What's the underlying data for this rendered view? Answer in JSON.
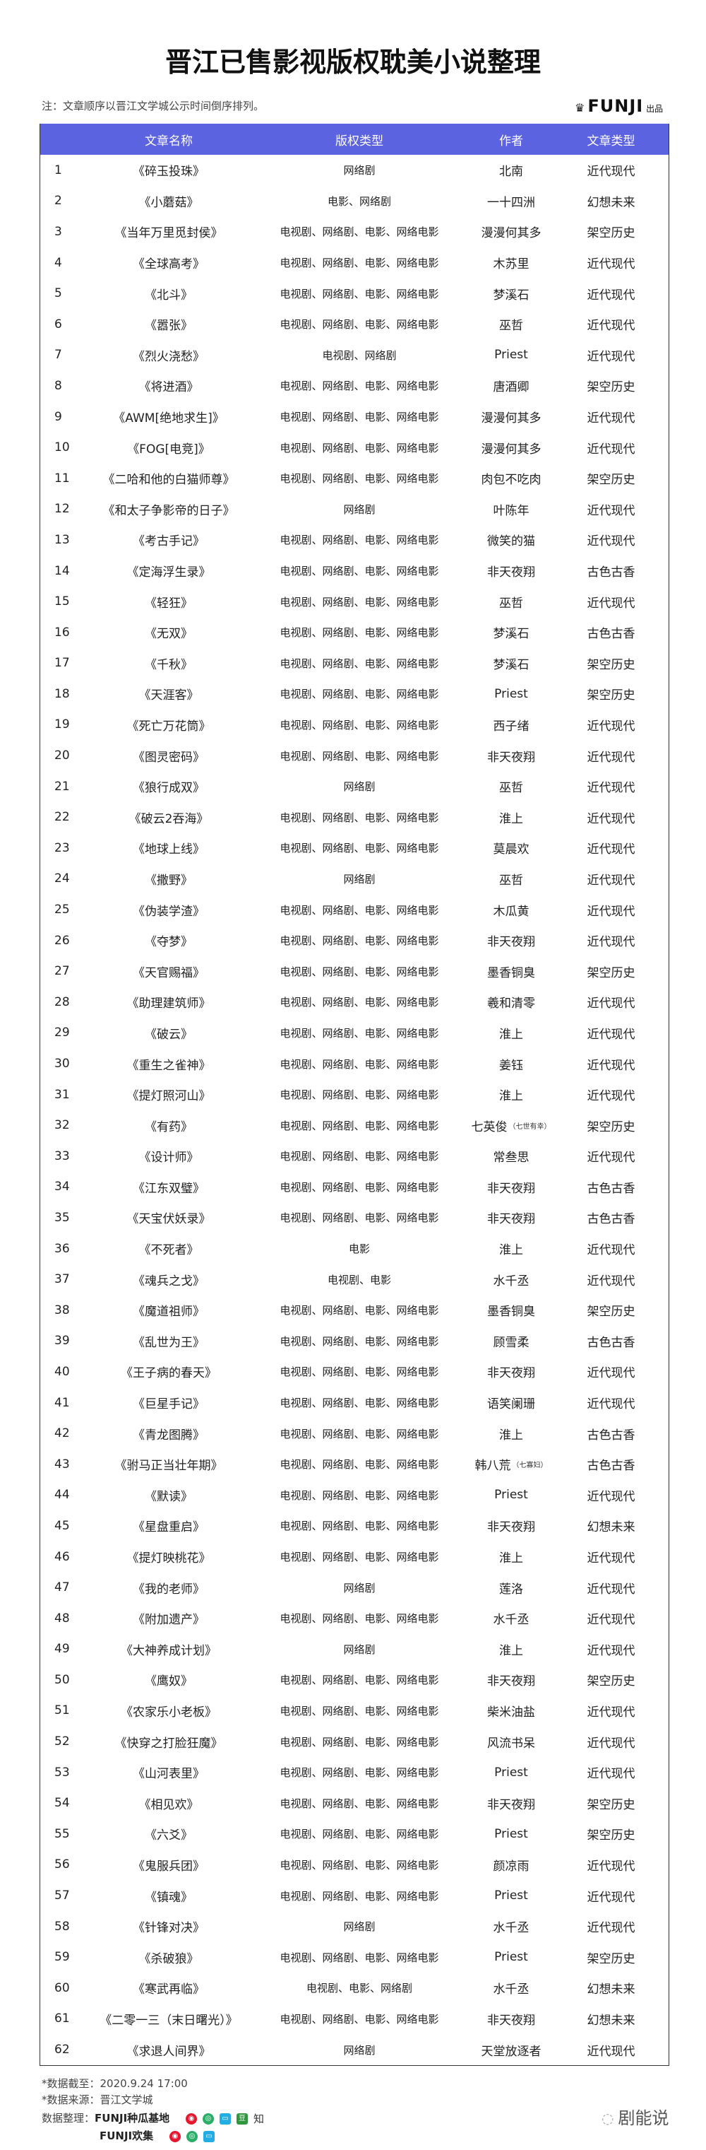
{
  "title": "晋江已售影视版权耽美小说整理",
  "note": "注：文章顺序以晋江文学城公示时间倒序排列。",
  "brand": {
    "name": "FUNJI",
    "suffix": "出品",
    "icon": "crown-icon"
  },
  "colors": {
    "header_bg": "#5c63e1",
    "header_text": "#ffffff"
  },
  "table": {
    "headers": [
      "",
      "文章名称",
      "版权类型",
      "作者",
      "文章类型"
    ],
    "rows": [
      [
        "1",
        "《碎玉投珠》",
        "网络剧",
        "北南",
        "近代现代"
      ],
      [
        "2",
        "《小蘑菇》",
        "电影、网络剧",
        "一十四洲",
        "幻想未来"
      ],
      [
        "3",
        "《当年万里觅封侯》",
        "电视剧、网络剧、电影、网络电影",
        "漫漫何其多",
        "架空历史"
      ],
      [
        "4",
        "《全球高考》",
        "电视剧、网络剧、电影、网络电影",
        "木苏里",
        "近代现代"
      ],
      [
        "5",
        "《北斗》",
        "电视剧、网络剧、电影、网络电影",
        "梦溪石",
        "近代现代"
      ],
      [
        "6",
        "《嚣张》",
        "电视剧、网络剧、电影、网络电影",
        "巫哲",
        "近代现代"
      ],
      [
        "7",
        "《烈火浇愁》",
        "电视剧、网络剧",
        "Priest",
        "近代现代"
      ],
      [
        "8",
        "《将进酒》",
        "电视剧、网络剧、电影、网络电影",
        "唐酒卿",
        "架空历史"
      ],
      [
        "9",
        "《AWM[绝地求生]》",
        "电视剧、网络剧、电影、网络电影",
        "漫漫何其多",
        "近代现代"
      ],
      [
        "10",
        "《FOG[电竞]》",
        "电视剧、网络剧、电影、网络电影",
        "漫漫何其多",
        "近代现代"
      ],
      [
        "11",
        "《二哈和他的白猫师尊》",
        "电视剧、网络剧、电影、网络电影",
        "肉包不吃肉",
        "架空历史"
      ],
      [
        "12",
        "《和太子争影帝的日子》",
        "网络剧",
        "叶陈年",
        "近代现代"
      ],
      [
        "13",
        "《考古手记》",
        "电视剧、网络剧、电影、网络电影",
        "微笑的猫",
        "近代现代"
      ],
      [
        "14",
        "《定海浮生录》",
        "电视剧、网络剧、电影、网络电影",
        "非天夜翔",
        "古色古香"
      ],
      [
        "15",
        "《轻狂》",
        "电视剧、网络剧、电影、网络电影",
        "巫哲",
        "近代现代"
      ],
      [
        "16",
        "《无双》",
        "电视剧、网络剧、电影、网络电影",
        "梦溪石",
        "古色古香"
      ],
      [
        "17",
        "《千秋》",
        "电视剧、网络剧、电影、网络电影",
        "梦溪石",
        "架空历史"
      ],
      [
        "18",
        "《天涯客》",
        "电视剧、网络剧、电影、网络电影",
        "Priest",
        "架空历史"
      ],
      [
        "19",
        "《死亡万花筒》",
        "电视剧、网络剧、电影、网络电影",
        "西子绪",
        "近代现代"
      ],
      [
        "20",
        "《图灵密码》",
        "电视剧、网络剧、电影、网络电影",
        "非天夜翔",
        "近代现代"
      ],
      [
        "21",
        "《狼行成双》",
        "网络剧",
        "巫哲",
        "近代现代"
      ],
      [
        "22",
        "《破云2吞海》",
        "电视剧、网络剧、电影、网络电影",
        "淮上",
        "近代现代"
      ],
      [
        "23",
        "《地球上线》",
        "电视剧、网络剧、电影、网络电影",
        "莫晨欢",
        "近代现代"
      ],
      [
        "24",
        "《撒野》",
        "网络剧",
        "巫哲",
        "近代现代"
      ],
      [
        "25",
        "《伪装学渣》",
        "电视剧、网络剧、电影、网络电影",
        "木瓜黄",
        "近代现代"
      ],
      [
        "26",
        "《夺梦》",
        "电视剧、网络剧、电影、网络电影",
        "非天夜翔",
        "近代现代"
      ],
      [
        "27",
        "《天官赐福》",
        "电视剧、网络剧、电影、网络电影",
        "墨香铜臭",
        "架空历史"
      ],
      [
        "28",
        "《助理建筑师》",
        "电视剧、网络剧、电影、网络电影",
        "羲和清零",
        "近代现代"
      ],
      [
        "29",
        "《破云》",
        "电视剧、网络剧、电影、网络电影",
        "淮上",
        "近代现代"
      ],
      [
        "30",
        "《重生之雀神》",
        "电视剧、网络剧、电影、网络电影",
        "姜钰",
        "近代现代"
      ],
      [
        "31",
        "《提灯照河山》",
        "电视剧、网络剧、电影、网络电影",
        "淮上",
        "近代现代"
      ],
      [
        "32",
        "《有药》",
        "电视剧、网络剧、电影、网络电影",
        "七英俊",
        "架空历史",
        "（七世有幸）"
      ],
      [
        "33",
        "《设计师》",
        "电视剧、网络剧、电影、网络电影",
        "常叁思",
        "近代现代"
      ],
      [
        "34",
        "《江东双璧》",
        "电视剧、网络剧、电影、网络电影",
        "非天夜翔",
        "古色古香"
      ],
      [
        "35",
        "《天宝伏妖录》",
        "电视剧、网络剧、电影、网络电影",
        "非天夜翔",
        "古色古香"
      ],
      [
        "36",
        "《不死者》",
        "电影",
        "淮上",
        "近代现代"
      ],
      [
        "37",
        "《魂兵之戈》",
        "电视剧、电影",
        "水千丞",
        "近代现代"
      ],
      [
        "38",
        "《魔道祖师》",
        "电视剧、网络剧、电影、网络电影",
        "墨香铜臭",
        "架空历史"
      ],
      [
        "39",
        "《乱世为王》",
        "电视剧、网络剧、电影、网络电影",
        "顾雪柔",
        "古色古香"
      ],
      [
        "40",
        "《王子病的春天》",
        "电视剧、网络剧、电影、网络电影",
        "非天夜翔",
        "近代现代"
      ],
      [
        "41",
        "《巨星手记》",
        "电视剧、网络剧、电影、网络电影",
        "语笑阑珊",
        "近代现代"
      ],
      [
        "42",
        "《青龙图腾》",
        "电视剧、网络剧、电影、网络电影",
        "淮上",
        "古色古香"
      ],
      [
        "43",
        "《驸马正当壮年期》",
        "电视剧、网络剧、电影、网络电影",
        "韩八荒",
        "古色古香",
        "（七寡妇）"
      ],
      [
        "44",
        "《默读》",
        "电视剧、网络剧、电影、网络电影",
        "Priest",
        "近代现代"
      ],
      [
        "45",
        "《星盘重启》",
        "电视剧、网络剧、电影、网络电影",
        "非天夜翔",
        "幻想未来"
      ],
      [
        "46",
        "《提灯映桃花》",
        "电视剧、网络剧、电影、网络电影",
        "淮上",
        "近代现代"
      ],
      [
        "47",
        "《我的老师》",
        "网络剧",
        "莲洛",
        "近代现代"
      ],
      [
        "48",
        "《附加遗产》",
        "电视剧、网络剧、电影、网络电影",
        "水千丞",
        "近代现代"
      ],
      [
        "49",
        "《大神养成计划》",
        "网络剧",
        "淮上",
        "近代现代"
      ],
      [
        "50",
        "《鹰奴》",
        "电视剧、网络剧、电影、网络电影",
        "非天夜翔",
        "架空历史"
      ],
      [
        "51",
        "《农家乐小老板》",
        "电视剧、网络剧、电影、网络电影",
        "柴米油盐",
        "近代现代"
      ],
      [
        "52",
        "《快穿之打脸狂魔》",
        "电视剧、网络剧、电影、网络电影",
        "风流书呆",
        "近代现代"
      ],
      [
        "53",
        "《山河表里》",
        "电视剧、网络剧、电影、网络电影",
        "Priest",
        "近代现代"
      ],
      [
        "54",
        "《相见欢》",
        "电视剧、网络剧、电影、网络电影",
        "非天夜翔",
        "架空历史"
      ],
      [
        "55",
        "《六爻》",
        "电视剧、网络剧、电影、网络电影",
        "Priest",
        "架空历史"
      ],
      [
        "56",
        "《鬼服兵团》",
        "电视剧、网络剧、电影、网络电影",
        "颜凉雨",
        "近代现代"
      ],
      [
        "57",
        "《镇魂》",
        "电视剧、网络剧、电影、网络电影",
        "Priest",
        "近代现代"
      ],
      [
        "58",
        "《针锋对决》",
        "网络剧",
        "水千丞",
        "近代现代"
      ],
      [
        "59",
        "《杀破狼》",
        "电视剧、网络剧、电影、网络电影",
        "Priest",
        "架空历史"
      ],
      [
        "60",
        "《寒武再临》",
        "电视剧、电影、网络剧",
        "水千丞",
        "幻想未来"
      ],
      [
        "61",
        "《二零一三（末日曙光）》",
        "电视剧、网络剧、电影、网络电影",
        "非天夜翔",
        "幻想未来"
      ],
      [
        "62",
        "《求退人间界》",
        "网络剧",
        "天堂放逐者",
        "近代现代"
      ]
    ]
  },
  "footer": {
    "cutoff": "*数据截至：2020.9.24 17:00",
    "source": "*数据来源：晋江文学城",
    "compiled_label": "数据整理：",
    "org1": "FUNJI种瓜基地",
    "org1_icons": [
      "weibo-icon",
      "wechat-icon",
      "bilibili-icon",
      "douban-icon",
      "zhihu-icon"
    ],
    "zhihu_char": "知",
    "org2": "FUNJI欢集",
    "org2_icons": [
      "weibo-icon",
      "wechat-icon",
      "bilibili-icon"
    ]
  },
  "signature": {
    "text": "剧能说",
    "icon": "wechat-icon"
  }
}
